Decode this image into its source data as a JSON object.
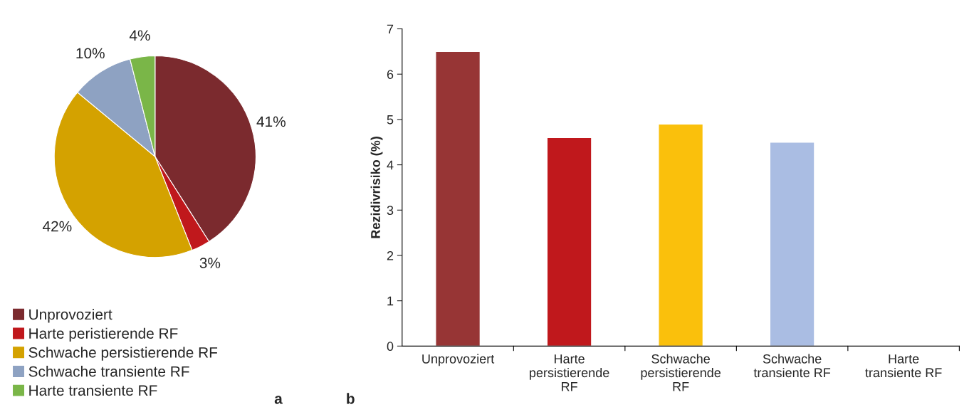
{
  "chart_data": [
    {
      "type": "pie",
      "categories": [
        "Unprovoziert",
        "Harte peristierende RF",
        "Schwache persistierende RF",
        "Schwache transiente RF",
        "Harte transiente RF"
      ],
      "values": [
        41,
        3,
        42,
        10,
        4
      ],
      "value_labels": [
        "41%",
        "3%",
        "42%",
        "10%",
        "4%"
      ],
      "colors": [
        "#7b2a2e",
        "#c0181c",
        "#d4a200",
        "#8ea2c2",
        "#7ab648"
      ],
      "legend": "bottom left",
      "annotations": [
        "a"
      ]
    },
    {
      "type": "bar",
      "categories": [
        "Unprovoziert",
        "Harte\npersistierende\nRF",
        "Schwache\npersistierende\nRF",
        "Schwache\ntransiente RF",
        "Harte\ntransiente RF"
      ],
      "values": [
        6.5,
        4.6,
        4.9,
        4.5,
        null
      ],
      "colors": [
        "#973535",
        "#c0181c",
        "#fac00c",
        "#aabde3",
        "#7ab648"
      ],
      "ylabel": "Rezidivrisiko (%)",
      "ylim": [
        0,
        7
      ],
      "yticks": [
        0,
        1,
        2,
        3,
        4,
        5,
        6,
        7
      ],
      "grid": false,
      "annotations": [
        "b"
      ]
    }
  ]
}
